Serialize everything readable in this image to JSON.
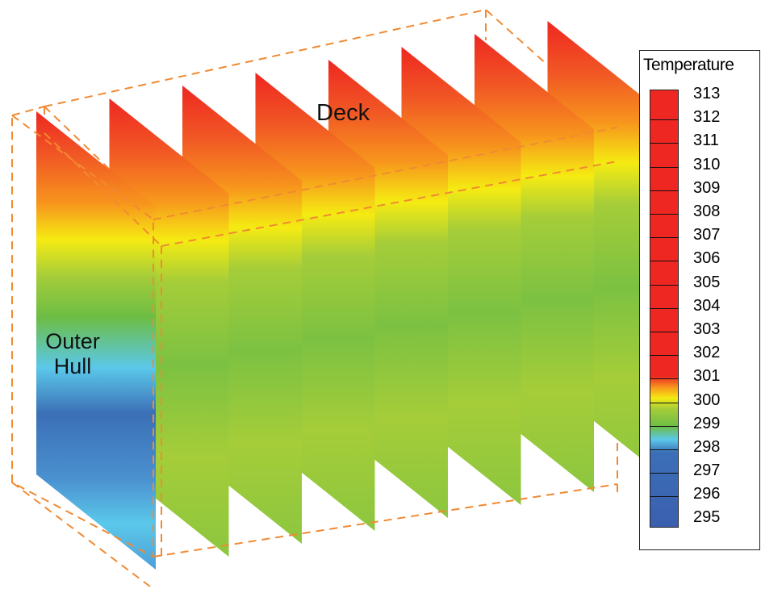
{
  "labels": {
    "deck": "Deck",
    "outer_hull_line1": "Outer",
    "outer_hull_line2": "Hull"
  },
  "legend": {
    "title": "Temperature",
    "ticks": [
      "313",
      "312",
      "311",
      "310",
      "309",
      "308",
      "307",
      "306",
      "305",
      "304",
      "303",
      "302",
      "301",
      "300",
      "299",
      "298",
      "297",
      "296",
      "295"
    ]
  },
  "colors": {
    "hot": "#ee2722",
    "orange": "#f7941d",
    "yellow": "#f5eb12",
    "green_light": "#a5cd39",
    "green": "#6cbd45",
    "cyan": "#5bc8ea",
    "blue": "#3b6fb6",
    "box_dash": "#f08a33"
  },
  "scene": {
    "plate_count": 8
  }
}
